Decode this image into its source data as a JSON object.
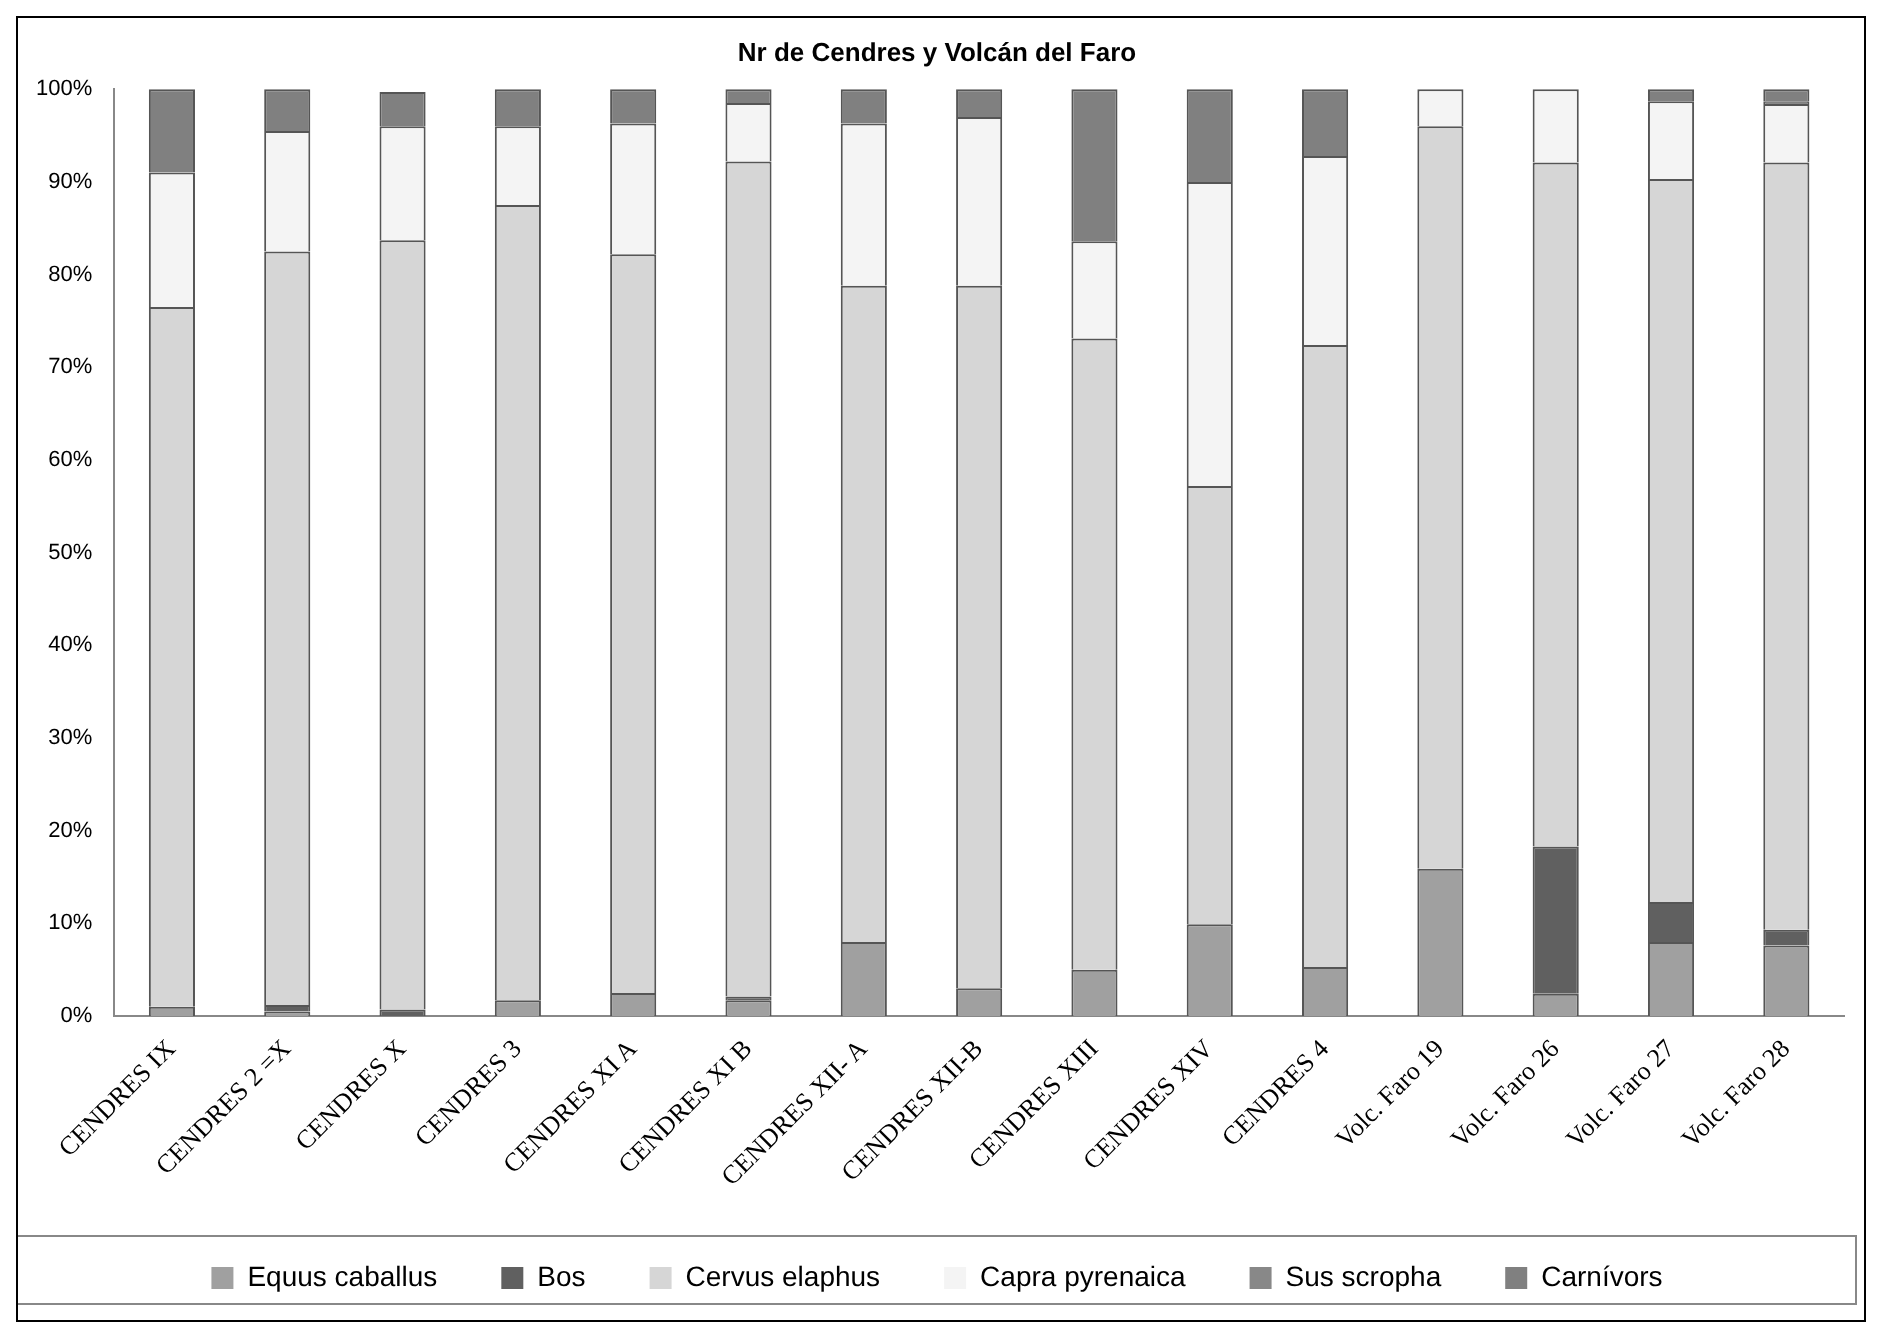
{
  "chart_data": {
    "type": "bar",
    "title": "Nr de Cendres y Volcán del Faro",
    "stacked": true,
    "legend": "bottom",
    "grid": false,
    "categories": [
      "CENDRES IX",
      "CENDRES 2 =X",
      "CENDRES X",
      "CENDRES 3",
      "CENDRES XI A",
      "CENDRES XI B",
      "CENDRES XII- A",
      "CENDRES XII-B",
      "CENDRES XIII",
      "CENDRES XIV",
      "CENDRES 4",
      "Volc. Faro 19",
      "Volc. Faro 26",
      "Volc. Faro 27",
      "Volc. Faro 28"
    ],
    "ylim": [
      0,
      100
    ],
    "yticks": [
      {
        "value": 0,
        "label": "0%"
      },
      {
        "value": 10,
        "label": "10%"
      },
      {
        "value": 20,
        "label": "20%"
      },
      {
        "value": 30,
        "label": "30%"
      },
      {
        "value": 40,
        "label": "40%"
      },
      {
        "value": 50,
        "label": "50%"
      },
      {
        "value": 60,
        "label": "60%"
      },
      {
        "value": 70,
        "label": "70%"
      },
      {
        "value": 80,
        "label": "80%"
      },
      {
        "value": 90,
        "label": "90%"
      },
      {
        "value": 100,
        "label": "100%"
      }
    ],
    "series": [
      {
        "name": "Equus caballus",
        "color": "#a0a0a0",
        "values": [
          1,
          0.5,
          null,
          1.7,
          2.5,
          1.7,
          8,
          3,
          5,
          9.9,
          5.3,
          15.9,
          2.4,
          8,
          7.6
        ]
      },
      {
        "name": "Bos",
        "color": "#606060",
        "values": [
          0,
          0.7,
          0.7,
          0,
          0,
          0.4,
          0,
          0,
          0,
          0,
          0,
          0,
          15.9,
          4.3,
          1.7
        ]
      },
      {
        "name": "Cervus elaphus",
        "color": "#d6d6d6",
        "values": [
          75.5,
          81.3,
          83,
          85.8,
          79.7,
          90.1,
          70.8,
          75.8,
          68.1,
          47.3,
          67.1,
          80.1,
          73.8,
          78,
          82.8
        ]
      },
      {
        "name": "Capra pyrenaica",
        "color": "#f4f4f4",
        "values": [
          14.5,
          13,
          12.3,
          8.5,
          14.1,
          6.3,
          17.5,
          18.2,
          10.5,
          32.8,
          20.4,
          4,
          7.9,
          8.4,
          6.3
        ]
      },
      {
        "name": "Sus scropha",
        "color": "#888888",
        "values": [
          0,
          0,
          0,
          0,
          0,
          0,
          0,
          0,
          0,
          0,
          0,
          0,
          0,
          0,
          0.3
        ]
      },
      {
        "name": "Carnívors",
        "color": "#808080",
        "values": [
          9,
          4.5,
          3.7,
          4,
          3.7,
          1.5,
          3.7,
          3,
          16.4,
          10,
          7.2,
          0,
          0,
          1.3,
          1.3
        ]
      }
    ]
  }
}
